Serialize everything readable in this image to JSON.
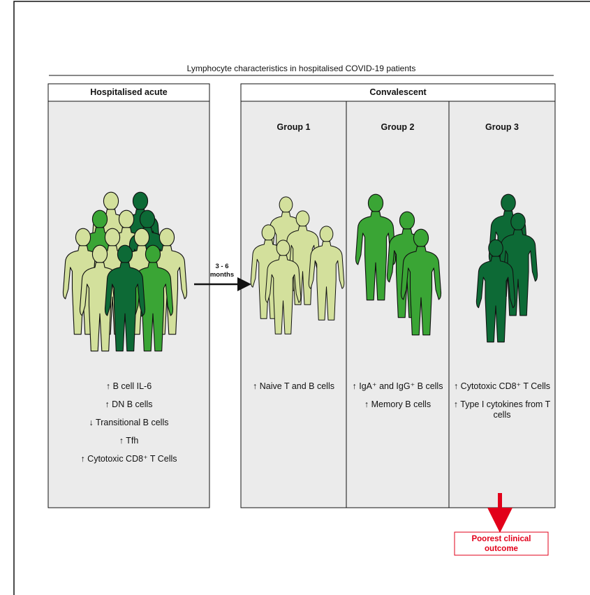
{
  "title": "Lymphocyte characteristics in hospitalised COVID-19 patients",
  "arrow_label": "3 - 6 months",
  "acute": {
    "title": "Hospitalised acute",
    "findings": [
      "↑ B cell IL-6",
      "↑ DN B cells",
      "↓ Transitional B cells",
      "↑ Tfh",
      "↑ Cytotoxic CD8⁺ T Cells"
    ]
  },
  "convalescent": {
    "title": "Convalescent",
    "groups": [
      {
        "title": "Group 1",
        "findings": [
          "↑ Naive T and B cells"
        ]
      },
      {
        "title": "Group 2",
        "findings": [
          "↑ IgA⁺ and IgG⁺ B cells",
          "↑ Memory B cells"
        ]
      },
      {
        "title": "Group 3",
        "findings": [
          "↑ Cytotoxic CD8⁺ T Cells",
          "↑ Type I cytokines from T cells"
        ]
      }
    ]
  },
  "outcome": "Poorest clinical outcome"
}
